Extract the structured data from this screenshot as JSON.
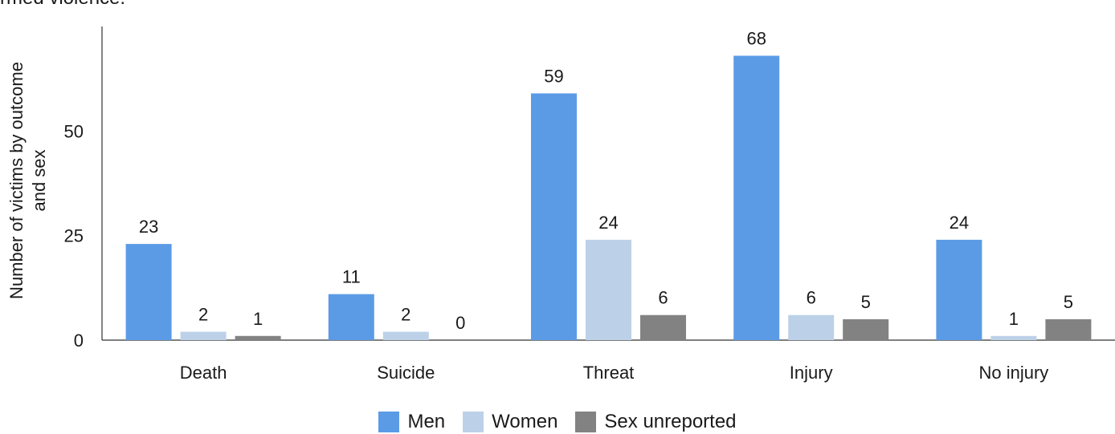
{
  "caption": "rmed violence.",
  "chart_data": {
    "type": "bar",
    "ylabel": "Number of victims by outcome and sex",
    "ylabel_lines": [
      "Number of victims by outcome",
      "and sex"
    ],
    "ylim": [
      0,
      75
    ],
    "yticks": [
      0,
      25,
      50
    ],
    "categories": [
      "Death",
      "Suicide",
      "Threat",
      "Injury",
      "No injury"
    ],
    "series": [
      {
        "name": "Men",
        "color": "#5b9be6",
        "values": [
          23,
          11,
          59,
          68,
          24
        ]
      },
      {
        "name": "Women",
        "color": "#bcd1e8",
        "values": [
          2,
          2,
          24,
          6,
          1
        ]
      },
      {
        "name": "Sex unreported",
        "color": "#828282",
        "values": [
          1,
          0,
          6,
          5,
          5
        ]
      }
    ],
    "grid": false,
    "legend": "bottom"
  }
}
